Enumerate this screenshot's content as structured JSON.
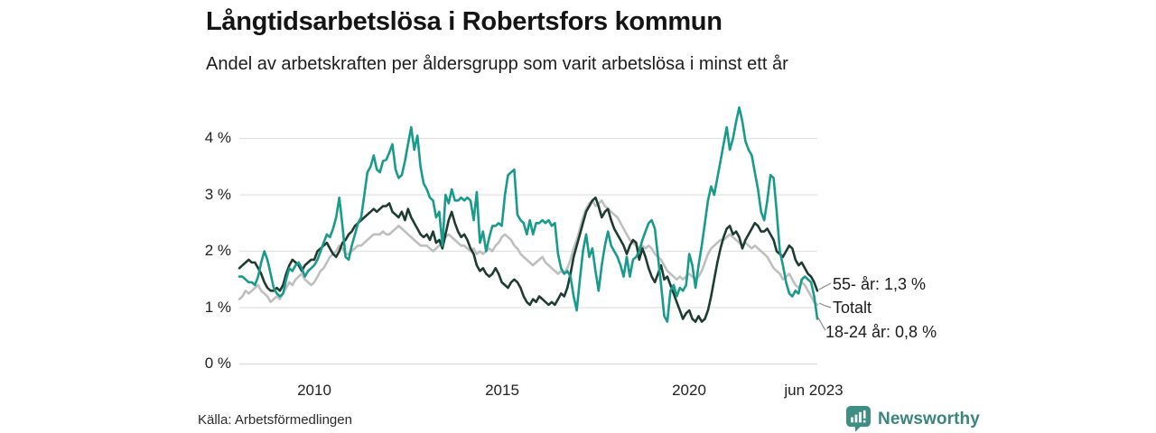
{
  "header": {
    "title": "Långtidsarbetslösa i Robertsfors kommun",
    "subtitle": "Andel av arbetskraften per åldersgrupp som varit arbetslösa i minst ett år"
  },
  "source": {
    "label": "Källa: Arbetsförmedlingen"
  },
  "brand": {
    "wordmark": "Newsworthy",
    "icon_color": "#3e8e84",
    "text_color": "#3a857c"
  },
  "chart_data": {
    "type": "line",
    "title": "Långtidsarbetslösa i Robertsfors kommun",
    "subtitle": "Andel av arbetskraften per åldersgrupp som varit arbetslösa i minst ett år",
    "x_unit": "month",
    "x_range": [
      "2008-01",
      "2023-06"
    ],
    "x_tick_labels": [
      "2010",
      "2015",
      "2020",
      "jun 2023"
    ],
    "y_tick_labels": [
      "4 %",
      "3 %",
      "2 %",
      "1 %",
      "0 %"
    ],
    "ylim": [
      0,
      4.6
    ],
    "grid": "horizontal",
    "legend_position": "right-end-labels",
    "annotations": [
      "55- år: 1,3 %",
      "Totalt",
      "18-24 år: 0,8 %"
    ],
    "colors": {
      "teal": "#189b8a",
      "dark_green": "#1f3c33",
      "gray": "#bfbfbf",
      "gridline": "#e2e2e2"
    },
    "series": [
      {
        "name": "Totalt",
        "color": "#bfbfbf",
        "end_value": 1.05,
        "values": [
          1.15,
          1.2,
          1.3,
          1.25,
          1.3,
          1.35,
          1.4,
          1.3,
          1.25,
          1.2,
          1.1,
          1.15,
          1.2,
          1.15,
          1.25,
          1.35,
          1.45,
          1.4,
          1.5,
          1.55,
          1.6,
          1.5,
          1.45,
          1.4,
          1.45,
          1.55,
          1.65,
          1.7,
          1.8,
          1.9,
          1.95,
          2.0,
          2.1,
          2.05,
          1.95,
          1.95,
          2.0,
          2.05,
          2.1,
          2.1,
          2.15,
          2.2,
          2.25,
          2.3,
          2.3,
          2.3,
          2.35,
          2.3,
          2.3,
          2.35,
          2.4,
          2.45,
          2.4,
          2.35,
          2.3,
          2.25,
          2.2,
          2.15,
          2.1,
          2.1,
          2.1,
          2.05,
          2.0,
          2.05,
          2.1,
          2.15,
          2.25,
          2.3,
          2.25,
          2.2,
          2.15,
          2.1,
          2.1,
          2.05,
          2.0,
          2.05,
          1.95,
          2.0,
          1.95,
          2.0,
          2.05,
          2.0,
          2.1,
          2.15,
          2.25,
          2.3,
          2.25,
          2.2,
          2.1,
          2.05,
          1.95,
          1.9,
          1.85,
          1.8,
          1.75,
          1.8,
          1.85,
          1.9,
          1.8,
          1.75,
          1.7,
          1.65,
          1.6,
          1.65,
          1.6,
          1.7,
          1.85,
          2.05,
          2.2,
          2.4,
          2.6,
          2.75,
          2.85,
          2.9,
          2.8,
          2.85,
          2.9,
          2.8,
          2.75,
          2.7,
          2.65,
          2.6,
          2.5,
          2.4,
          2.3,
          2.2,
          2.15,
          2.1,
          2.05,
          2.1,
          2.05,
          2.1,
          2.05,
          1.95,
          1.9,
          1.85,
          1.75,
          1.65,
          1.6,
          1.55,
          1.5,
          1.55,
          1.5,
          1.55,
          1.6,
          1.55,
          1.5,
          1.55,
          1.65,
          1.8,
          1.95,
          2.05,
          2.1,
          2.15,
          2.2,
          2.2,
          2.25,
          2.3,
          2.25,
          2.2,
          2.15,
          2.1,
          2.15,
          2.1,
          2.05,
          2.1,
          2.05,
          2.0,
          1.95,
          1.9,
          1.8,
          1.7,
          1.65,
          1.6,
          1.5,
          1.55,
          1.6,
          1.5,
          1.4,
          1.35,
          1.45,
          1.4,
          1.3,
          1.2,
          1.1,
          1.05
        ]
      },
      {
        "name": "55- år",
        "color": "#1f3c33",
        "end_value": 1.3,
        "values": [
          1.7,
          1.75,
          1.8,
          1.85,
          1.8,
          1.8,
          1.7,
          1.6,
          1.45,
          1.35,
          1.3,
          1.3,
          1.35,
          1.3,
          1.4,
          1.6,
          1.75,
          1.85,
          1.8,
          1.75,
          1.65,
          1.75,
          1.8,
          1.85,
          1.85,
          2.0,
          2.05,
          2.1,
          2.15,
          2.05,
          1.95,
          1.9,
          2.0,
          2.15,
          2.2,
          2.3,
          2.35,
          2.45,
          2.5,
          2.55,
          2.6,
          2.65,
          2.7,
          2.75,
          2.7,
          2.75,
          2.8,
          2.8,
          2.85,
          2.7,
          2.65,
          2.6,
          2.7,
          2.55,
          2.75,
          2.6,
          2.5,
          2.4,
          2.3,
          2.25,
          2.3,
          2.2,
          2.35,
          2.15,
          2.2,
          2.05,
          2.3,
          2.55,
          2.7,
          2.5,
          2.35,
          2.25,
          2.3,
          2.2,
          2.05,
          1.95,
          1.75,
          1.65,
          1.7,
          1.6,
          1.55,
          1.6,
          1.7,
          1.6,
          1.45,
          1.4,
          1.35,
          1.45,
          1.5,
          1.45,
          1.35,
          1.2,
          1.1,
          1.05,
          1.15,
          1.1,
          1.2,
          1.15,
          1.1,
          1.05,
          1.1,
          1.05,
          1.15,
          1.25,
          1.2,
          1.35,
          1.6,
          1.9,
          2.1,
          2.3,
          2.5,
          2.7,
          2.8,
          2.9,
          2.95,
          2.8,
          2.6,
          2.7,
          2.75,
          2.55,
          2.4,
          2.3,
          2.2,
          2.1,
          1.95,
          2.1,
          2.2,
          2.15,
          1.85,
          2.05,
          1.9,
          1.7,
          1.55,
          1.45,
          1.6,
          1.75,
          1.5,
          1.55,
          1.4,
          1.25,
          1.1,
          0.95,
          0.8,
          0.9,
          0.95,
          0.8,
          0.75,
          0.85,
          0.75,
          0.8,
          0.95,
          1.2,
          1.5,
          1.8,
          2.05,
          2.25,
          2.4,
          2.45,
          2.3,
          2.35,
          2.25,
          2.05,
          2.2,
          2.3,
          2.4,
          2.5,
          2.45,
          2.35,
          2.35,
          2.4,
          2.3,
          2.2,
          2.0,
          1.95,
          1.9,
          2.0,
          2.1,
          2.05,
          1.85,
          1.75,
          1.8,
          1.7,
          1.6,
          1.55,
          1.45,
          1.3
        ]
      },
      {
        "name": "18-24 år",
        "color": "#189b8a",
        "end_value": 0.8,
        "values": [
          1.55,
          1.55,
          1.5,
          1.45,
          1.45,
          1.4,
          1.55,
          1.8,
          2.0,
          1.85,
          1.6,
          1.35,
          1.25,
          1.2,
          1.25,
          1.5,
          1.7,
          1.65,
          1.75,
          1.8,
          1.7,
          1.55,
          1.65,
          1.7,
          1.75,
          1.85,
          2.0,
          2.15,
          2.3,
          2.25,
          2.4,
          2.6,
          2.95,
          2.45,
          1.9,
          1.85,
          2.1,
          2.3,
          2.5,
          2.6,
          3.0,
          3.4,
          3.5,
          3.7,
          3.45,
          3.4,
          3.6,
          3.62,
          3.75,
          3.9,
          3.45,
          3.3,
          3.35,
          3.6,
          3.9,
          4.2,
          3.8,
          4.05,
          3.5,
          3.2,
          3.1,
          2.95,
          2.9,
          2.6,
          2.7,
          2.1,
          3.0,
          2.85,
          3.1,
          2.9,
          2.9,
          2.95,
          2.9,
          2.95,
          2.9,
          2.55,
          3.05,
          2.15,
          2.35,
          2.0,
          2.25,
          2.45,
          2.45,
          2.5,
          2.45,
          3.0,
          3.35,
          3.4,
          3.45,
          2.65,
          2.55,
          2.5,
          2.3,
          2.55,
          2.3,
          2.5,
          2.5,
          2.55,
          2.5,
          2.55,
          2.45,
          2.5,
          1.95,
          1.7,
          1.6,
          1.65,
          1.55,
          1.2,
          0.95,
          1.5,
          2.0,
          2.3,
          1.9,
          2.05,
          1.65,
          1.3,
          1.75,
          2.1,
          2.35,
          2.1,
          2.0,
          1.9,
          1.75,
          1.55,
          1.9,
          1.55,
          1.85,
          1.9,
          2.0,
          2.2,
          2.35,
          2.5,
          2.55,
          2.4,
          1.9,
          1.4,
          0.85,
          0.75,
          1.3,
          1.4,
          1.2,
          1.35,
          1.3,
          1.4,
          1.95,
          1.75,
          1.35,
          1.75,
          2.1,
          2.5,
          2.9,
          3.15,
          3.0,
          3.3,
          3.6,
          3.9,
          4.2,
          3.8,
          4.0,
          4.3,
          4.55,
          4.3,
          3.95,
          3.8,
          3.7,
          3.4,
          3.1,
          2.7,
          2.55,
          2.9,
          3.35,
          3.3,
          2.7,
          2.0,
          1.75,
          1.45,
          1.25,
          1.2,
          1.3,
          1.25,
          1.5,
          1.55,
          1.5,
          1.45,
          1.2,
          0.8
        ]
      }
    ]
  }
}
